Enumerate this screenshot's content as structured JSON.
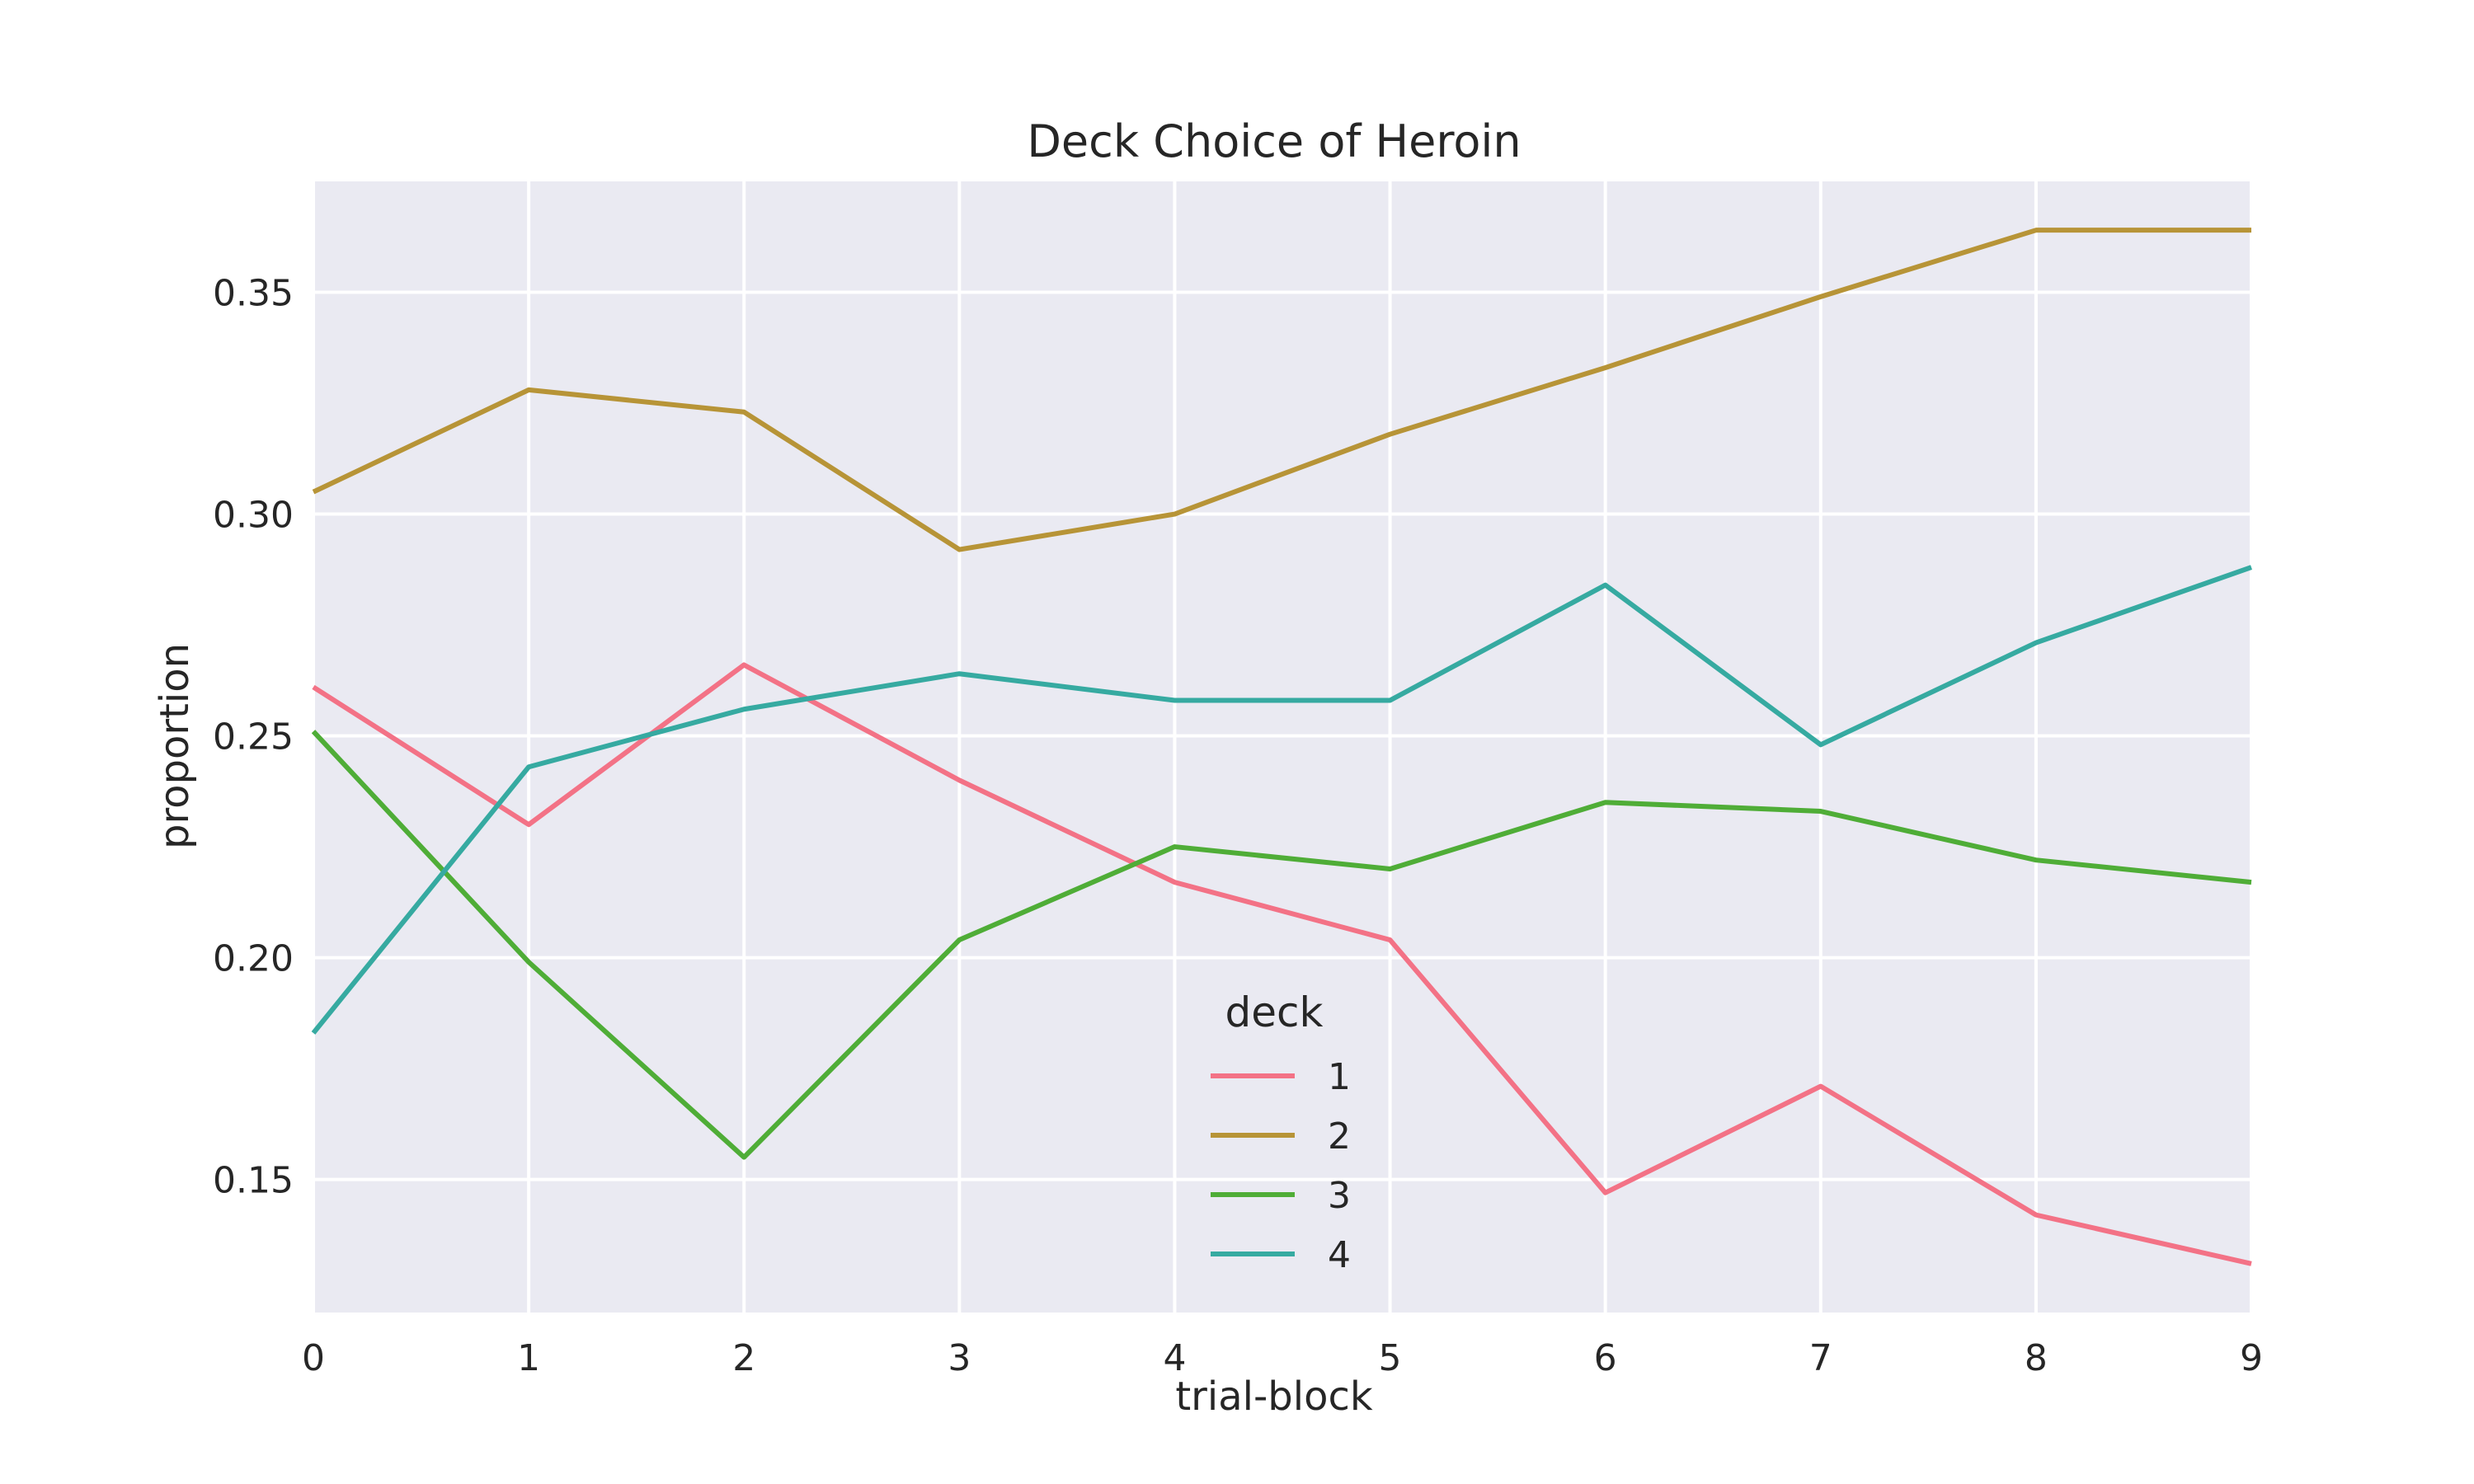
{
  "chart_data": {
    "type": "line",
    "title": "Deck Choice of Heroin",
    "xlabel": "trial-block",
    "ylabel": "proportion",
    "x": [
      0,
      1,
      2,
      3,
      4,
      5,
      6,
      7,
      8,
      9
    ],
    "x_ticks": [
      "0",
      "1",
      "2",
      "3",
      "4",
      "5",
      "6",
      "7",
      "8",
      "9"
    ],
    "y_ticks": [
      0.15,
      0.2,
      0.25,
      0.3,
      0.35
    ],
    "y_tick_labels": [
      "0.15",
      "0.20",
      "0.25",
      "0.30",
      "0.35"
    ],
    "xlim": [
      0,
      9
    ],
    "ylim": [
      0.12,
      0.375
    ],
    "grid": true,
    "background": "#eaeaf2",
    "grid_color": "#ffffff",
    "legend": {
      "title": "deck",
      "placement": "lower-center"
    },
    "series": [
      {
        "name": "1",
        "color": "#f37286",
        "values": [
          0.261,
          0.23,
          0.266,
          0.24,
          0.217,
          0.204,
          0.147,
          0.171,
          0.142,
          0.131
        ]
      },
      {
        "name": "2",
        "color": "#b79437",
        "values": [
          0.305,
          0.328,
          0.323,
          0.292,
          0.3,
          0.318,
          0.333,
          0.349,
          0.364,
          0.364
        ]
      },
      {
        "name": "3",
        "color": "#4fad37",
        "values": [
          0.251,
          0.199,
          0.155,
          0.204,
          0.225,
          0.22,
          0.235,
          0.233,
          0.222,
          0.217
        ]
      },
      {
        "name": "4",
        "color": "#36aaa1",
        "values": [
          0.183,
          0.243,
          0.256,
          0.264,
          0.258,
          0.258,
          0.284,
          0.248,
          0.271,
          0.288
        ]
      }
    ]
  }
}
